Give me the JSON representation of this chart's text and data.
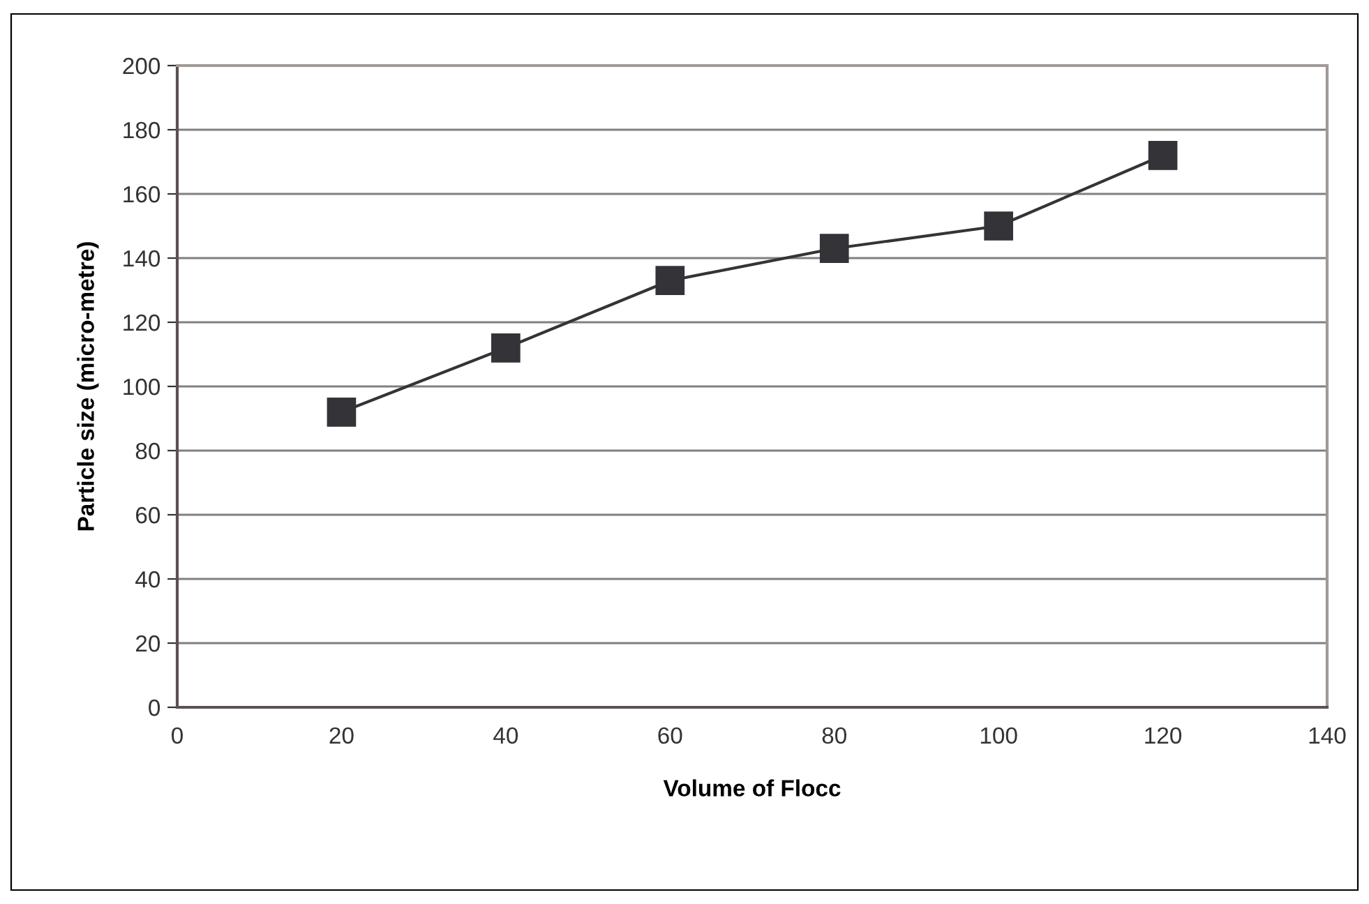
{
  "chart_data": {
    "type": "line",
    "xlabel": "Volume of Flocc",
    "ylabel": "Particle size (micro-metre)",
    "x": [
      20,
      40,
      60,
      80,
      100,
      120
    ],
    "series": [
      {
        "color": "#333338",
        "values": [
          92,
          112,
          133,
          143,
          150,
          172
        ]
      }
    ],
    "xlim": [
      0,
      140
    ],
    "xticks": [
      0,
      20,
      40,
      60,
      80,
      100,
      120,
      140
    ],
    "ylim": [
      0,
      200
    ],
    "yticks": [
      0,
      20,
      40,
      60,
      80,
      100,
      120,
      140,
      160,
      180,
      200
    ],
    "grid": "y",
    "marker": "square",
    "line_style": "solid",
    "legend": false
  }
}
